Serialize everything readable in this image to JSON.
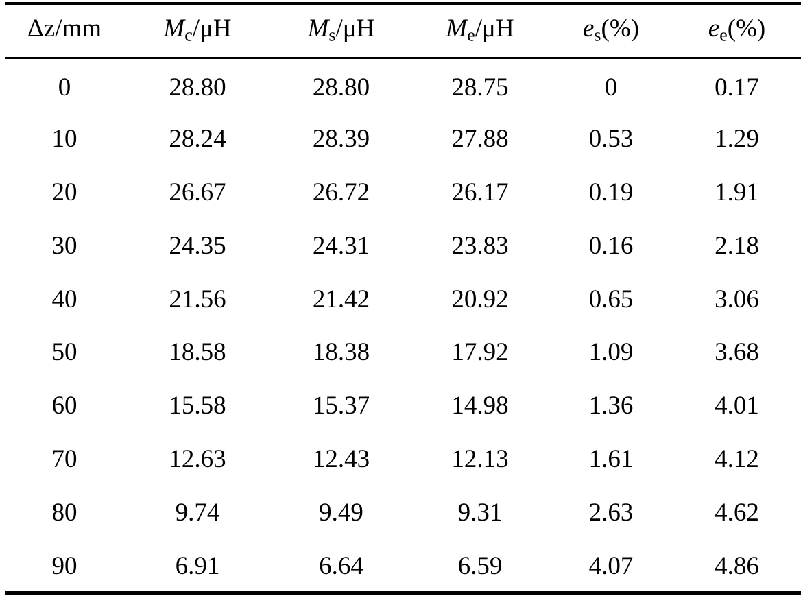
{
  "table": {
    "headers": [
      {
        "symbol": "Δz",
        "sub": "",
        "unit": "/mm",
        "italic": false
      },
      {
        "symbol": "M",
        "sub": "c",
        "unit": "/μH",
        "italic": true
      },
      {
        "symbol": "M",
        "sub": "s",
        "unit": "/μH",
        "italic": true
      },
      {
        "symbol": "M",
        "sub": "e",
        "unit": "/μH",
        "italic": true
      },
      {
        "symbol": "e",
        "sub": "s",
        "unit": "(%)",
        "italic": true
      },
      {
        "symbol": "e",
        "sub": "e",
        "unit": "(%)",
        "italic": true
      }
    ],
    "rows": [
      [
        "0",
        "28.80",
        "28.80",
        "28.75",
        "0",
        "0.17"
      ],
      [
        "10",
        "28.24",
        "28.39",
        "27.88",
        "0.53",
        "1.29"
      ],
      [
        "20",
        "26.67",
        "26.72",
        "26.17",
        "0.19",
        "1.91"
      ],
      [
        "30",
        "24.35",
        "24.31",
        "23.83",
        "0.16",
        "2.18"
      ],
      [
        "40",
        "21.56",
        "21.42",
        "20.92",
        "0.65",
        "3.06"
      ],
      [
        "50",
        "18.58",
        "18.38",
        "17.92",
        "1.09",
        "3.68"
      ],
      [
        "60",
        "15.58",
        "15.37",
        "14.98",
        "1.36",
        "4.01"
      ],
      [
        "70",
        "12.63",
        "12.43",
        "12.13",
        "1.61",
        "4.12"
      ],
      [
        "80",
        "9.74",
        "9.49",
        "9.31",
        "2.63",
        "4.62"
      ],
      [
        "90",
        "6.91",
        "6.64",
        "6.59",
        "4.07",
        "4.86"
      ]
    ]
  }
}
